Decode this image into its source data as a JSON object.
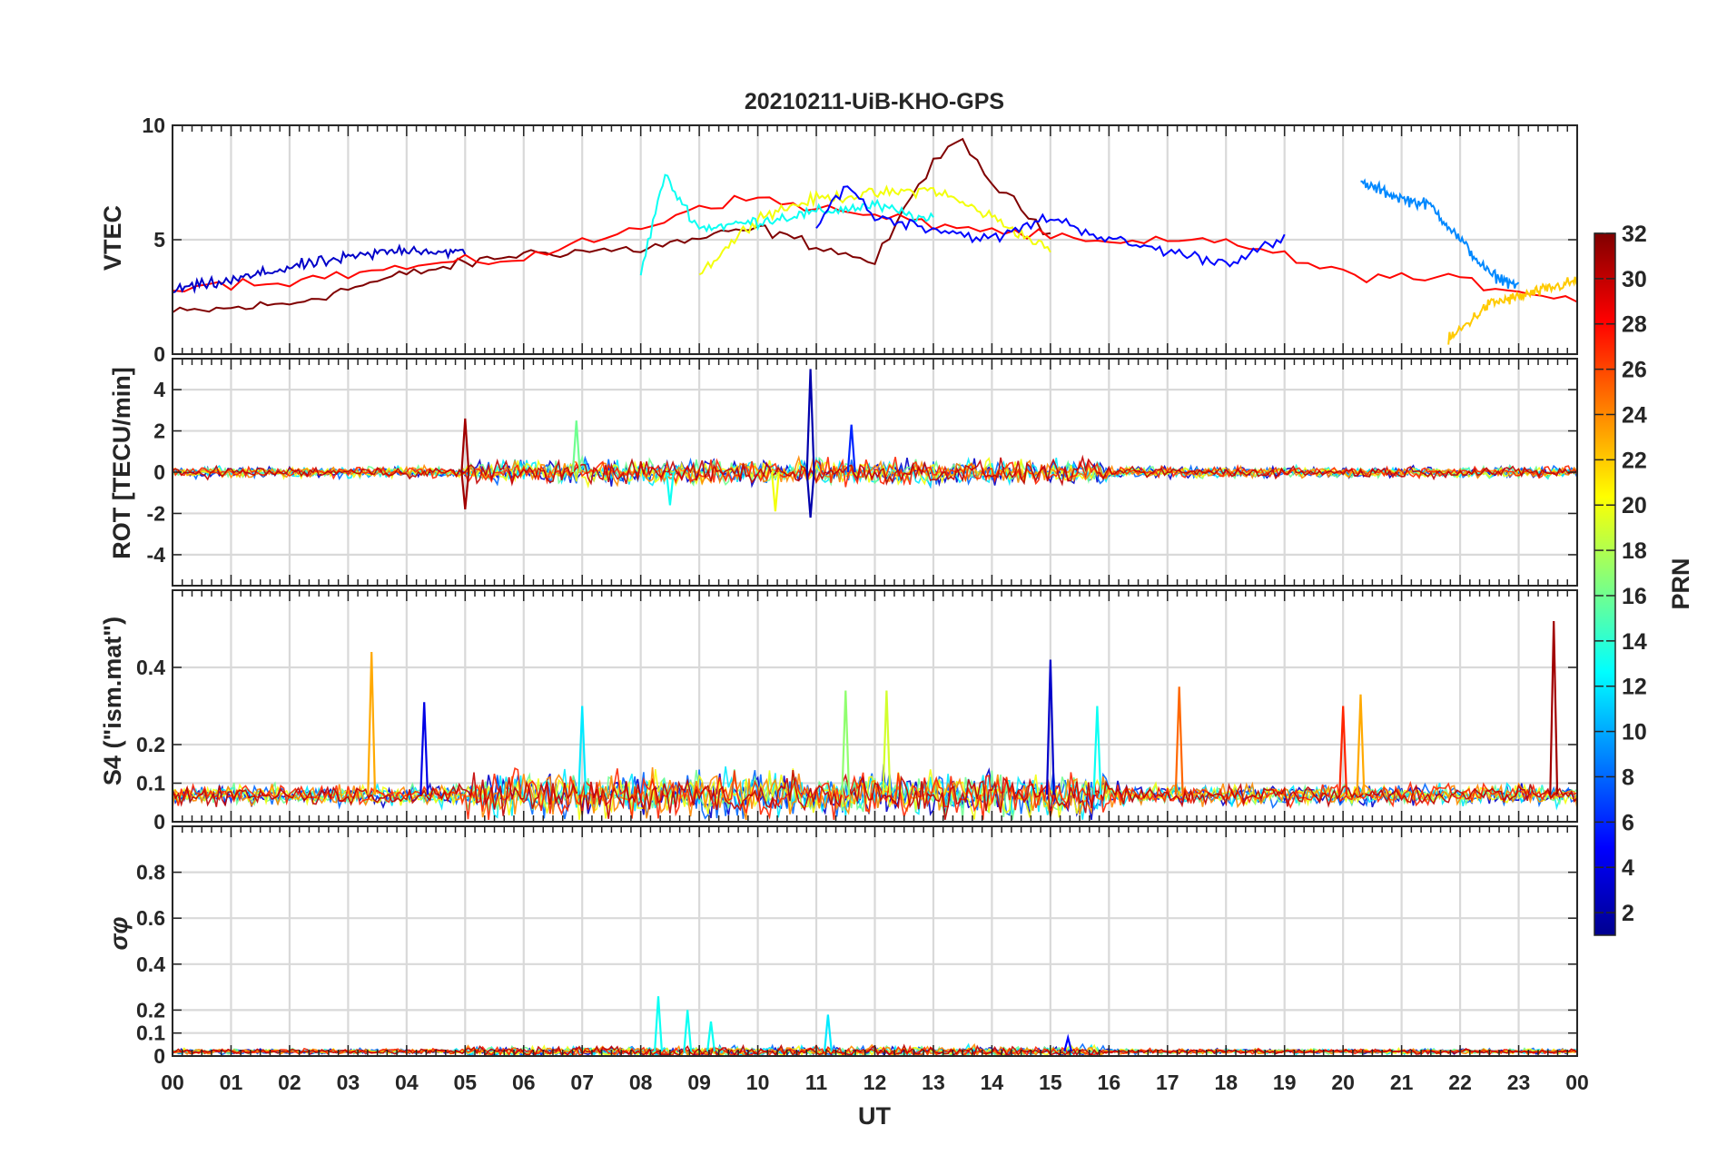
{
  "figure": {
    "title": "20210211-UiB-KHO-GPS",
    "xlabel": "UT",
    "x_ticks": [
      "00",
      "01",
      "02",
      "03",
      "04",
      "05",
      "06",
      "07",
      "08",
      "09",
      "10",
      "11",
      "12",
      "13",
      "14",
      "15",
      "16",
      "17",
      "18",
      "19",
      "20",
      "21",
      "22",
      "23",
      "00"
    ],
    "colorbar": {
      "label": "PRN",
      "range": [
        1,
        32
      ],
      "ticks": [
        "2",
        "4",
        "6",
        "8",
        "10",
        "12",
        "14",
        "16",
        "18",
        "20",
        "22",
        "24",
        "26",
        "28",
        "30",
        "32"
      ],
      "colormap": "jet",
      "colors": [
        "#00008f",
        "#0000ff",
        "#0080ff",
        "#00ffff",
        "#80ff80",
        "#ffff00",
        "#ff8000",
        "#ff0000",
        "#800000"
      ]
    }
  },
  "chart_data": [
    {
      "type": "line",
      "panel": "VTEC",
      "ylabel": "VTEC",
      "x_range_hours": [
        0,
        24
      ],
      "ylim": [
        0,
        10
      ],
      "y_ticks": [
        "0",
        "5",
        "10"
      ],
      "grid": true,
      "series": [
        {
          "name": "PRN 32",
          "prn": 32,
          "x": [
            0,
            2,
            4,
            6,
            8,
            10,
            12,
            13,
            13.5,
            14,
            15
          ],
          "y": [
            1.8,
            2.2,
            3.5,
            4.4,
            4.6,
            5.5,
            4.0,
            8.5,
            9.2,
            7.5,
            5.2
          ]
        },
        {
          "name": "PRN 28",
          "prn": 28,
          "x": [
            0,
            2,
            4,
            6,
            8,
            9,
            10,
            12,
            16,
            18,
            20,
            22,
            24
          ],
          "y": [
            3.0,
            3.2,
            3.8,
            4.2,
            5.5,
            6.5,
            6.8,
            6.0,
            4.8,
            5.0,
            3.5,
            3.2,
            2.4
          ]
        },
        {
          "name": "PRN 20",
          "prn": 20,
          "x": [
            9,
            10,
            11,
            12,
            13,
            14,
            15
          ],
          "y": [
            3.5,
            6.0,
            6.8,
            7.0,
            7.2,
            6.0,
            4.5
          ]
        },
        {
          "name": "PRN 13",
          "prn": 13,
          "x": [
            8,
            8.4,
            9,
            10,
            11,
            12,
            13
          ],
          "y": [
            3.5,
            7.8,
            5.5,
            5.8,
            6.2,
            6.5,
            5.8
          ]
        },
        {
          "name": "PRN 5",
          "prn": 5,
          "x": [
            11,
            11.5,
            12,
            13,
            14,
            15,
            16,
            17,
            18,
            19
          ],
          "y": [
            5.5,
            7.5,
            6.0,
            5.5,
            5.0,
            6.0,
            5.0,
            4.5,
            4.0,
            5.0
          ]
        },
        {
          "name": "PRN 9",
          "prn": 9,
          "x": [
            20.3,
            21,
            21.5,
            22,
            22.5,
            23
          ],
          "y": [
            7.5,
            6.8,
            6.5,
            5.0,
            3.5,
            3.0
          ]
        },
        {
          "name": "PRN 22",
          "prn": 22,
          "x": [
            21.8,
            22.5,
            23,
            24
          ],
          "y": [
            0.6,
            2.2,
            2.5,
            3.2
          ]
        },
        {
          "name": "PRN 3",
          "prn": 3,
          "x": [
            0,
            1,
            2,
            3,
            4,
            5
          ],
          "y": [
            2.8,
            3.2,
            3.8,
            4.2,
            4.6,
            4.4
          ]
        }
      ]
    },
    {
      "type": "line",
      "panel": "ROT",
      "ylabel": "ROT [TECU/min]",
      "x_range_hours": [
        0,
        24
      ],
      "ylim": [
        -5.5,
        5.5
      ],
      "y_ticks": [
        "-4",
        "-2",
        "0",
        "2",
        "4"
      ],
      "grid": true,
      "annotations": [
        {
          "prn": 2,
          "x": 10.9,
          "y": 5.0
        },
        {
          "prn": 2,
          "x": 10.9,
          "y": -2.2
        },
        {
          "prn": 31,
          "x": 5.0,
          "y": 2.6
        },
        {
          "prn": 31,
          "x": 5.0,
          "y": -1.8
        },
        {
          "prn": 16,
          "x": 6.9,
          "y": 2.5
        },
        {
          "prn": 6,
          "x": 11.6,
          "y": 2.3
        },
        {
          "prn": 13,
          "x": 8.5,
          "y": -1.6
        },
        {
          "prn": 20,
          "x": 10.3,
          "y": -1.9
        }
      ]
    },
    {
      "type": "line",
      "panel": "S4",
      "ylabel": "S4 (\"ism.mat\")",
      "x_range_hours": [
        0,
        24
      ],
      "ylim": [
        0,
        0.6
      ],
      "y_ticks": [
        "0",
        "0.1",
        "0.2",
        "0.4"
      ],
      "grid": true,
      "annotations": [
        {
          "prn": 23,
          "x": 3.4,
          "y": 0.44
        },
        {
          "prn": 4,
          "x": 4.3,
          "y": 0.31
        },
        {
          "prn": 12,
          "x": 7.0,
          "y": 0.3
        },
        {
          "prn": 17,
          "x": 11.5,
          "y": 0.34
        },
        {
          "prn": 19,
          "x": 12.2,
          "y": 0.34
        },
        {
          "prn": 3,
          "x": 15.0,
          "y": 0.42
        },
        {
          "prn": 13,
          "x": 15.8,
          "y": 0.3
        },
        {
          "prn": 25,
          "x": 17.2,
          "y": 0.35
        },
        {
          "prn": 27,
          "x": 20.0,
          "y": 0.3
        },
        {
          "prn": 23,
          "x": 20.3,
          "y": 0.33
        },
        {
          "prn": 31,
          "x": 23.6,
          "y": 0.52
        }
      ]
    },
    {
      "type": "line",
      "panel": "sigma_phi",
      "ylabel": "σφ",
      "x_range_hours": [
        0,
        24
      ],
      "ylim": [
        0,
        1.0
      ],
      "y_ticks": [
        "0",
        "0.1",
        "0.2",
        "0.4",
        "0.6",
        "0.8"
      ],
      "grid": true,
      "annotations": [
        {
          "prn": 13,
          "x": 8.3,
          "y": 0.26
        },
        {
          "prn": 13,
          "x": 8.8,
          "y": 0.2
        },
        {
          "prn": 13,
          "x": 9.2,
          "y": 0.15
        },
        {
          "prn": 12,
          "x": 11.2,
          "y": 0.18
        },
        {
          "prn": 5,
          "x": 15.3,
          "y": 0.08
        }
      ]
    }
  ]
}
